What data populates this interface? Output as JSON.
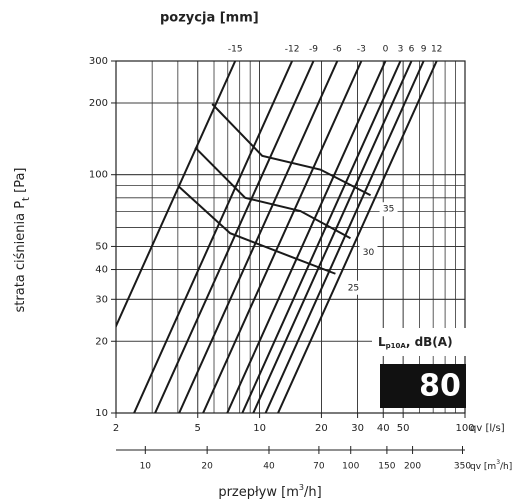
{
  "chart_data": {
    "type": "line",
    "title": "pozycja [mm]",
    "ylabel": [
      "strata ciśnienia P",
      "t",
      " [Pa]"
    ],
    "xlabel": [
      "przepływ [m",
      "3",
      "/h]"
    ],
    "log": true,
    "grid": true,
    "minor_grid": true,
    "xlim": [
      2,
      100
    ],
    "ylim": [
      10,
      300
    ],
    "xticks": [
      2,
      5,
      10,
      20,
      30,
      40,
      50,
      100
    ],
    "yticks": [
      10,
      20,
      30,
      40,
      50,
      100,
      200,
      300
    ],
    "x_unit": "qv [l/s]",
    "x2lim": [
      7.2,
      360
    ],
    "x2ticks": [
      10,
      20,
      40,
      70,
      100,
      150,
      200,
      350
    ],
    "x2_unit": [
      "qv [m",
      "3",
      "/h]"
    ],
    "series": [
      {
        "name": "-15",
        "color": "#1a1a1a",
        "x": [
          1.29,
          7.61
        ],
        "y": [
          10,
          300
        ]
      },
      {
        "name": "-12",
        "color": "#1a1a1a",
        "x": [
          2.45,
          14.4
        ],
        "y": [
          10,
          300
        ]
      },
      {
        "name": "-9",
        "color": "#1a1a1a",
        "x": [
          3.1,
          18.3
        ],
        "y": [
          10,
          300
        ]
      },
      {
        "name": "-6",
        "color": "#1a1a1a",
        "x": [
          4.06,
          23.9
        ],
        "y": [
          10,
          300
        ]
      },
      {
        "name": "-3",
        "color": "#1a1a1a",
        "x": [
          5.31,
          31.3
        ],
        "y": [
          10,
          300
        ]
      },
      {
        "name": "0",
        "color": "#1a1a1a",
        "x": [
          6.96,
          41.0
        ],
        "y": [
          10,
          300
        ]
      },
      {
        "name": "3",
        "color": "#1a1a1a",
        "x": [
          8.24,
          48.5
        ],
        "y": [
          10,
          300
        ]
      },
      {
        "name": "6",
        "color": "#1a1a1a",
        "x": [
          9.32,
          54.9
        ],
        "y": [
          10,
          300
        ]
      },
      {
        "name": "9",
        "color": "#1a1a1a",
        "x": [
          10.7,
          62.9
        ],
        "y": [
          10,
          300
        ]
      },
      {
        "name": "12",
        "color": "#1a1a1a",
        "x": [
          12.3,
          72.8
        ],
        "y": [
          10,
          300
        ]
      }
    ],
    "noise_curves": [
      {
        "name": "35",
        "color": "#1a1a1a",
        "x": [
          5.88,
          10.3,
          19.8,
          34.7
        ],
        "y": [
          198,
          120,
          105,
          82
        ]
      },
      {
        "name": "30",
        "color": "#1a1a1a",
        "x": [
          4.86,
          8.51,
          15.8,
          27.7
        ],
        "y": [
          130,
          80,
          70.4,
          54.1
        ]
      },
      {
        "name": "25",
        "color": "#1a1a1a",
        "x": [
          4.01,
          7.19,
          14.1,
          23.4
        ],
        "y": [
          89.8,
          56.8,
          45.4,
          38.4
        ]
      }
    ],
    "badge": {
      "label": [
        "L",
        "p10A",
        ", dB(A)"
      ],
      "value": "80"
    }
  }
}
